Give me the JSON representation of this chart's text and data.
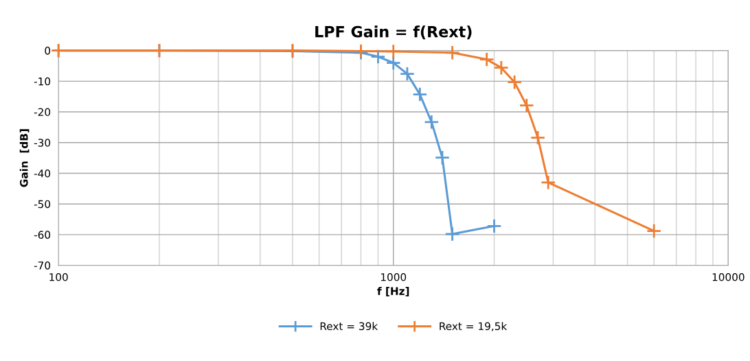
{
  "chart_data": {
    "type": "line",
    "title": "LPF Gain = f(Rext)",
    "xlabel": "f [Hz]",
    "ylabel": "Gain  [dB]",
    "log": "x",
    "xlim": [
      100,
      10000
    ],
    "xticks": [
      100,
      1000,
      10000
    ],
    "ylim": [
      -70,
      0
    ],
    "yticks": [
      -70,
      -60,
      -50,
      -40,
      -30,
      -20,
      -10,
      0
    ],
    "grid": true,
    "legend": "bottom",
    "marker": "cross",
    "line_style": "solid",
    "series": [
      {
        "name": "Rext = 39k",
        "color": "#5b9bd5",
        "x": [
          100,
          200,
          500,
          800,
          900,
          1000,
          1100,
          1200,
          1300,
          1400,
          1500,
          2000
        ],
        "values": [
          0,
          0,
          -0.2,
          -0.7,
          -2,
          -4,
          -7.6,
          -14.3,
          -23.3,
          -34.9,
          -59.8,
          -57.2
        ]
      },
      {
        "name": "Rext = 19,5k",
        "color": "#ed7d31",
        "x": [
          100,
          200,
          500,
          800,
          1000,
          1500,
          1900,
          2100,
          2300,
          2500,
          2700,
          2900,
          6000
        ],
        "values": [
          0,
          0,
          0,
          -0.2,
          -0.3,
          -0.7,
          -2.9,
          -5.6,
          -10.3,
          -17.9,
          -28.4,
          -43,
          -58.8
        ]
      }
    ]
  }
}
